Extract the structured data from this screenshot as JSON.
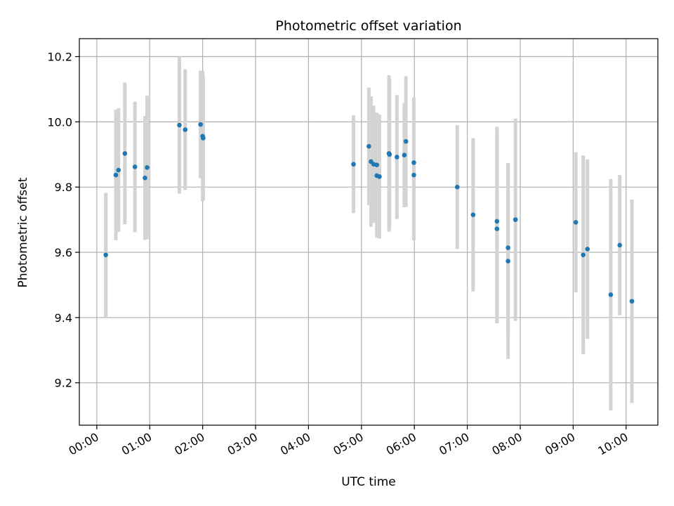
{
  "chart_data": {
    "type": "scatter",
    "title": "Photometric offset variation",
    "xlabel": "UTC time",
    "ylabel": "Photometric offset",
    "x_unit": "hours",
    "xlim": [
      -0.33,
      10.6
    ],
    "ylim": [
      9.07,
      10.255
    ],
    "xticks": [
      {
        "value": 0,
        "label": "00:00"
      },
      {
        "value": 1,
        "label": "01:00"
      },
      {
        "value": 2,
        "label": "02:00"
      },
      {
        "value": 3,
        "label": "03:00"
      },
      {
        "value": 4,
        "label": "04:00"
      },
      {
        "value": 5,
        "label": "05:00"
      },
      {
        "value": 6,
        "label": "06:00"
      },
      {
        "value": 7,
        "label": "07:00"
      },
      {
        "value": 8,
        "label": "08:00"
      },
      {
        "value": 9,
        "label": "09:00"
      },
      {
        "value": 10,
        "label": "10:00"
      }
    ],
    "yticks": [
      {
        "value": 9.2,
        "label": "9.2"
      },
      {
        "value": 9.4,
        "label": "9.4"
      },
      {
        "value": 9.6,
        "label": "9.6"
      },
      {
        "value": 9.8,
        "label": "9.8"
      },
      {
        "value": 10.0,
        "label": "10.0"
      },
      {
        "value": 10.2,
        "label": "10.2"
      }
    ],
    "grid": true,
    "colors": {
      "points": "#1f77b4",
      "error_bars": "#d3d3d3"
    },
    "points": [
      {
        "x": 0.17,
        "y": 9.592,
        "err": 0.19
      },
      {
        "x": 0.36,
        "y": 9.837,
        "err": 0.2
      },
      {
        "x": 0.41,
        "y": 9.852,
        "err": 0.19
      },
      {
        "x": 0.53,
        "y": 9.903,
        "err": 0.217
      },
      {
        "x": 0.72,
        "y": 9.862,
        "err": 0.2
      },
      {
        "x": 0.91,
        "y": 9.828,
        "err": 0.19
      },
      {
        "x": 0.95,
        "y": 9.86,
        "err": 0.22
      },
      {
        "x": 1.56,
        "y": 9.99,
        "err": 0.21
      },
      {
        "x": 1.67,
        "y": 9.976,
        "err": 0.185
      },
      {
        "x": 1.96,
        "y": 9.992,
        "err": 0.165
      },
      {
        "x": 2.0,
        "y": 9.956,
        "err": 0.2
      },
      {
        "x": 2.01,
        "y": 9.95,
        "err": 0.19
      },
      {
        "x": 4.85,
        "y": 9.87,
        "err": 0.15
      },
      {
        "x": 5.14,
        "y": 9.925,
        "err": 0.18
      },
      {
        "x": 5.18,
        "y": 9.878,
        "err": 0.2
      },
      {
        "x": 5.23,
        "y": 9.87,
        "err": 0.18
      },
      {
        "x": 5.29,
        "y": 9.868,
        "err": 0.16
      },
      {
        "x": 5.29,
        "y": 9.835,
        "err": 0.19
      },
      {
        "x": 5.34,
        "y": 9.832,
        "err": 0.19
      },
      {
        "x": 5.52,
        "y": 9.903,
        "err": 0.24
      },
      {
        "x": 5.53,
        "y": 9.9,
        "err": 0.23
      },
      {
        "x": 5.67,
        "y": 9.892,
        "err": 0.19
      },
      {
        "x": 5.81,
        "y": 9.898,
        "err": 0.16
      },
      {
        "x": 5.84,
        "y": 9.94,
        "err": 0.2
      },
      {
        "x": 5.99,
        "y": 9.875,
        "err": 0.2
      },
      {
        "x": 5.99,
        "y": 9.837,
        "err": 0.2
      },
      {
        "x": 6.81,
        "y": 9.8,
        "err": 0.19
      },
      {
        "x": 7.11,
        "y": 9.715,
        "err": 0.235
      },
      {
        "x": 7.56,
        "y": 9.695,
        "err": 0.29
      },
      {
        "x": 7.56,
        "y": 9.672,
        "err": 0.29
      },
      {
        "x": 7.77,
        "y": 9.614,
        "err": 0.26
      },
      {
        "x": 7.77,
        "y": 9.573,
        "err": 0.3
      },
      {
        "x": 7.91,
        "y": 9.7,
        "err": 0.31
      },
      {
        "x": 9.05,
        "y": 9.692,
        "err": 0.215
      },
      {
        "x": 9.19,
        "y": 9.592,
        "err": 0.305
      },
      {
        "x": 9.27,
        "y": 9.61,
        "err": 0.275
      },
      {
        "x": 9.71,
        "y": 9.47,
        "err": 0.355
      },
      {
        "x": 9.88,
        "y": 9.622,
        "err": 0.215
      },
      {
        "x": 10.11,
        "y": 9.45,
        "err": 0.312
      }
    ]
  }
}
